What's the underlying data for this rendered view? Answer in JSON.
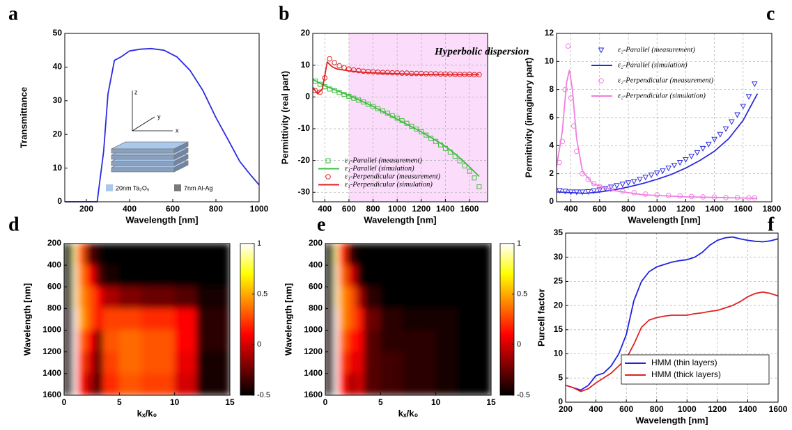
{
  "chart_data": [
    {
      "type": "line",
      "panel_label": "a",
      "xlabel": "Wavelength [nm]",
      "ylabel": "Transmittance",
      "xlim": [
        100,
        1000
      ],
      "ylim": [
        0,
        50
      ],
      "xticks": [
        200,
        400,
        600,
        800,
        1000
      ],
      "yticks": [
        0,
        10,
        20,
        30,
        40,
        50
      ],
      "grid": false,
      "series": [
        {
          "color": "#2a2ae0",
          "x": [
            100,
            200,
            250,
            280,
            300,
            330,
            360,
            400,
            450,
            500,
            560,
            620,
            680,
            740,
            800,
            860,
            910,
            960,
            1000
          ],
          "values": [
            0,
            0,
            0,
            15,
            32,
            42,
            43,
            44.8,
            45.3,
            45.5,
            45,
            43,
            39,
            33,
            25,
            18,
            12,
            8,
            5
          ]
        }
      ],
      "inset": {
        "axis_labels": [
          "z",
          "y",
          "x"
        ],
        "legend": [
          {
            "name": "20nm Ta₂O₅",
            "color": "#a8c8ec"
          },
          {
            "name": "7nm Al-Ag",
            "color": "#7a7a7a"
          }
        ]
      }
    },
    {
      "type": "line",
      "panel_label": "b",
      "xlabel": "Wavelength [nm]",
      "ylabel": "Permittivity (real part)",
      "xlim": [
        300,
        1750
      ],
      "ylim": [
        -33,
        20
      ],
      "xticks": [
        400,
        600,
        800,
        1000,
        1200,
        1400,
        1600
      ],
      "yticks": [
        -30,
        -20,
        -10,
        0,
        10,
        20
      ],
      "grid": true,
      "annotation": "Hyperbolic dispersion",
      "shaded_xrange": [
        600,
        1750
      ],
      "legend": "lower left",
      "series": [
        {
          "name": "ε₁-Parallel (measurement)",
          "color": "#3cbf3c",
          "marker": "square",
          "x": [
            320,
            360,
            400,
            440,
            480,
            520,
            560,
            600,
            640,
            680,
            720,
            760,
            800,
            840,
            880,
            920,
            960,
            1000,
            1040,
            1080,
            1120,
            1160,
            1200,
            1240,
            1280,
            1320,
            1360,
            1400,
            1440,
            1480,
            1520,
            1560,
            1600,
            1640,
            1680
          ],
          "values": [
            5,
            4,
            3.2,
            2.5,
            2,
            1.4,
            0.8,
            0.2,
            -0.4,
            -1,
            -1.6,
            -2.3,
            -3,
            -3.7,
            -4.4,
            -5.1,
            -5.9,
            -6.7,
            -7.5,
            -8.3,
            -9.2,
            -10.1,
            -11,
            -12,
            -13,
            -14,
            -15.1,
            -16.2,
            -17.4,
            -18.7,
            -20.1,
            -21.7,
            -23.4,
            -25.5,
            -28.3
          ]
        },
        {
          "name": "ε₁-Parallel (simulation)",
          "color": "#3cbf3c",
          "x": [
            300,
            400,
            500,
            600,
            700,
            800,
            900,
            1000,
            1100,
            1200,
            1300,
            1400,
            1500,
            1600,
            1680
          ],
          "values": [
            5.5,
            3.5,
            2,
            0.5,
            -1.2,
            -3,
            -5,
            -7,
            -9,
            -11,
            -13.2,
            -15.5,
            -18.5,
            -22,
            -25
          ]
        },
        {
          "name": "ε₁-Perpendicular (measurement)",
          "color": "#e02020",
          "marker": "circle",
          "x": [
            320,
            360,
            400,
            440,
            480,
            520,
            560,
            600,
            640,
            680,
            720,
            760,
            800,
            840,
            880,
            920,
            960,
            1000,
            1040,
            1080,
            1120,
            1160,
            1200,
            1240,
            1280,
            1320,
            1360,
            1400,
            1440,
            1480,
            1520,
            1560,
            1600,
            1640,
            1680
          ],
          "values": [
            2,
            1.5,
            6,
            12,
            10.8,
            9.8,
            9.2,
            8.8,
            8.5,
            8.3,
            8.1,
            8,
            7.9,
            7.8,
            7.7,
            7.7,
            7.6,
            7.6,
            7.5,
            7.5,
            7.4,
            7.4,
            7.4,
            7.3,
            7.3,
            7.3,
            7.2,
            7.2,
            7.2,
            7.1,
            7.1,
            7.1,
            7.1,
            7,
            7
          ]
        },
        {
          "name": "ε₁-Perpendicular (simulation)",
          "color": "#e02020",
          "x": [
            300,
            340,
            380,
            420,
            460,
            500,
            600,
            700,
            800,
            1000,
            1200,
            1400,
            1680
          ],
          "values": [
            3,
            1,
            2.5,
            11,
            9.5,
            8.8,
            8.2,
            7.8,
            7.6,
            7.3,
            7.1,
            7,
            7
          ]
        }
      ]
    },
    {
      "type": "line",
      "panel_label": "c",
      "xlabel": "Wavelength [nm]",
      "ylabel": "Permittivity (imaginary part)",
      "xlim": [
        300,
        1800
      ],
      "ylim": [
        0,
        12
      ],
      "xticks": [
        400,
        600,
        800,
        1000,
        1200,
        1400,
        1600,
        1800
      ],
      "yticks": [
        0,
        2,
        4,
        6,
        8,
        10,
        12
      ],
      "grid": true,
      "legend": "upper right",
      "series": [
        {
          "name": "ε₂-Parallel (measurement)",
          "color": "#2a2ae0",
          "marker": "triangle-down",
          "x": [
            320,
            360,
            400,
            440,
            480,
            520,
            560,
            600,
            640,
            680,
            720,
            760,
            800,
            840,
            880,
            920,
            960,
            1000,
            1040,
            1080,
            1120,
            1160,
            1200,
            1240,
            1280,
            1320,
            1360,
            1400,
            1440,
            1480,
            1520,
            1560,
            1600,
            1640,
            1680
          ],
          "values": [
            0.8,
            0.75,
            0.7,
            0.7,
            0.7,
            0.72,
            0.78,
            0.85,
            0.95,
            1.05,
            1.15,
            1.25,
            1.35,
            1.45,
            1.6,
            1.75,
            1.9,
            2.05,
            2.2,
            2.4,
            2.6,
            2.8,
            3.0,
            3.25,
            3.5,
            3.8,
            4.1,
            4.45,
            4.8,
            5.2,
            5.7,
            6.2,
            6.8,
            7.5,
            8.4
          ]
        },
        {
          "name": "ε₂-Parallel (simulation)",
          "color": "#2a2ae0",
          "x": [
            300,
            400,
            500,
            600,
            700,
            800,
            900,
            1000,
            1100,
            1200,
            1300,
            1400,
            1500,
            1600,
            1700
          ],
          "values": [
            0.7,
            0.65,
            0.6,
            0.7,
            0.85,
            1.05,
            1.3,
            1.6,
            1.95,
            2.4,
            2.95,
            3.6,
            4.5,
            5.8,
            7.7
          ]
        },
        {
          "name": "ε₂-Perpendicular (measurement)",
          "color": "#f07ee0",
          "marker": "circle",
          "x": [
            320,
            340,
            360,
            380,
            400,
            420,
            440,
            480,
            520,
            560,
            600,
            680,
            760,
            840,
            920,
            1000,
            1080,
            1160,
            1240,
            1320,
            1400,
            1480,
            1560,
            1640,
            1680
          ],
          "values": [
            2.8,
            4.3,
            8,
            11.1,
            7.4,
            5.4,
            3.6,
            2,
            1.6,
            1.3,
            1.1,
            0.9,
            0.75,
            0.65,
            0.55,
            0.5,
            0.45,
            0.42,
            0.38,
            0.35,
            0.33,
            0.3,
            0.3,
            0.28,
            0.28
          ]
        },
        {
          "name": "ε₂-Perpendicular (simulation)",
          "color": "#f07ee0",
          "x": [
            300,
            340,
            370,
            390,
            410,
            440,
            480,
            550,
            700,
            900,
            1200,
            1700
          ],
          "values": [
            2.5,
            5,
            8.5,
            9.4,
            8,
            4.5,
            2.2,
            1.3,
            0.8,
            0.5,
            0.35,
            0.25
          ]
        }
      ]
    },
    {
      "type": "heatmap",
      "panel_label": "d",
      "xlabel": "kₓ/k₀",
      "ylabel": "Wavelength [nm]",
      "xlim": [
        0,
        15
      ],
      "ylim": [
        200,
        1600
      ],
      "y_inverted": true,
      "xticks": [
        0,
        5,
        10,
        15
      ],
      "yticks": [
        200,
        400,
        600,
        800,
        1000,
        1200,
        1400,
        1600
      ],
      "colormap": "hot",
      "zlim": [
        -0.5,
        1
      ],
      "colorbar_ticks": [
        1,
        0.5,
        0,
        -0.5
      ],
      "x_edges": [
        0,
        0.8,
        1.2,
        2,
        2.8,
        3.5,
        5,
        7,
        10,
        12,
        15
      ],
      "y_edges": [
        200,
        400,
        600,
        800,
        1000,
        1200,
        1400,
        1600
      ],
      "z": [
        [
          -0.5,
          0.9,
          0.3,
          -0.3,
          -0.45,
          -0.5,
          -0.5,
          -0.5,
          -0.5,
          -0.5
        ],
        [
          -0.5,
          0.95,
          0.4,
          0.1,
          -0.3,
          -0.45,
          -0.5,
          -0.5,
          -0.5,
          -0.5
        ],
        [
          -0.45,
          0.95,
          0.45,
          0.3,
          0.1,
          -0.1,
          -0.2,
          -0.25,
          -0.3,
          -0.45
        ],
        [
          -0.4,
          1,
          0.5,
          0.3,
          0.1,
          0.25,
          0.25,
          0.2,
          0.1,
          -0.4
        ],
        [
          -0.4,
          1,
          0.35,
          0.1,
          -0.3,
          0.3,
          0.35,
          0.3,
          0.1,
          -0.4
        ],
        [
          -0.4,
          1,
          0.25,
          0,
          -0.4,
          0.25,
          0.35,
          0.3,
          0.05,
          -0.45
        ],
        [
          -0.4,
          1,
          0.15,
          -0.1,
          -0.4,
          0.2,
          0.3,
          0.25,
          0,
          -0.45
        ]
      ]
    },
    {
      "type": "heatmap",
      "panel_label": "e",
      "xlabel": "kₓ/k₀",
      "ylabel": "Wavelength [nm]",
      "xlim": [
        0,
        15
      ],
      "ylim": [
        200,
        1600
      ],
      "y_inverted": true,
      "xticks": [
        0,
        5,
        10,
        15
      ],
      "yticks": [
        200,
        400,
        600,
        800,
        1000,
        1200,
        1400,
        1600
      ],
      "colormap": "hot",
      "zlim": [
        -0.5,
        1
      ],
      "colorbar_ticks": [
        1,
        0.5,
        0,
        -0.5
      ],
      "x_edges": [
        0,
        0.8,
        1.2,
        2,
        2.8,
        3.5,
        5,
        7,
        10,
        12,
        15
      ],
      "y_edges": [
        200,
        400,
        600,
        800,
        1000,
        1200,
        1400,
        1600
      ],
      "z": [
        [
          -0.5,
          0.9,
          0.2,
          -0.4,
          -0.5,
          -0.5,
          -0.5,
          -0.5,
          -0.5,
          -0.5
        ],
        [
          -0.5,
          0.95,
          0.35,
          0,
          -0.45,
          -0.5,
          -0.5,
          -0.5,
          -0.5,
          -0.5
        ],
        [
          -0.45,
          0.95,
          0.45,
          0.3,
          -0.1,
          -0.4,
          -0.5,
          -0.5,
          -0.5,
          -0.5
        ],
        [
          -0.4,
          1,
          0.45,
          0.3,
          0.15,
          -0.25,
          -0.4,
          -0.45,
          -0.45,
          -0.5
        ],
        [
          -0.4,
          1,
          0.35,
          0.15,
          0.1,
          -0.3,
          -0.4,
          -0.4,
          -0.45,
          -0.5
        ],
        [
          -0.4,
          1,
          0.25,
          0.05,
          0.05,
          -0.3,
          -0.35,
          -0.4,
          -0.45,
          -0.5
        ],
        [
          -0.4,
          1,
          0.15,
          -0.1,
          0,
          -0.3,
          -0.35,
          -0.4,
          -0.45,
          -0.5
        ]
      ]
    },
    {
      "type": "line",
      "panel_label": "f",
      "xlabel": "Wavelength [nm]",
      "ylabel": "Purcell factor",
      "xlim": [
        200,
        1600
      ],
      "ylim": [
        0,
        35
      ],
      "xticks": [
        200,
        400,
        600,
        800,
        1000,
        1200,
        1400,
        1600
      ],
      "yticks": [
        0,
        5,
        10,
        15,
        20,
        25,
        30,
        35
      ],
      "grid": true,
      "legend": "lower right",
      "series": [
        {
          "name": "HMM (thin layers)",
          "color": "#2020e0",
          "x": [
            200,
            250,
            300,
            350,
            400,
            450,
            500,
            550,
            600,
            650,
            700,
            750,
            800,
            850,
            900,
            950,
            1000,
            1050,
            1100,
            1150,
            1200,
            1250,
            1300,
            1350,
            1400,
            1450,
            1500,
            1550,
            1600
          ],
          "values": [
            3.5,
            3,
            2.5,
            3.5,
            5.5,
            6,
            7.5,
            10,
            14,
            21,
            25,
            27,
            28,
            28.5,
            29,
            29.3,
            29.5,
            30,
            31,
            32.5,
            33.5,
            34,
            34.2,
            33.8,
            33.5,
            33.3,
            33.2,
            33.4,
            33.8
          ]
        },
        {
          "name": "HMM (thick layers)",
          "color": "#e02020",
          "x": [
            200,
            250,
            300,
            350,
            400,
            450,
            500,
            550,
            600,
            650,
            700,
            750,
            800,
            850,
            900,
            950,
            1000,
            1050,
            1100,
            1150,
            1200,
            1250,
            1300,
            1350,
            1400,
            1450,
            1500,
            1550,
            1600
          ],
          "values": [
            3.5,
            3,
            2.2,
            2.8,
            4,
            5,
            6,
            7.5,
            9,
            12,
            15.5,
            17,
            17.5,
            17.8,
            18,
            18,
            18,
            18.3,
            18.5,
            18.8,
            19,
            19.5,
            20,
            20.8,
            21.8,
            22.5,
            22.8,
            22.5,
            22
          ]
        }
      ]
    }
  ]
}
